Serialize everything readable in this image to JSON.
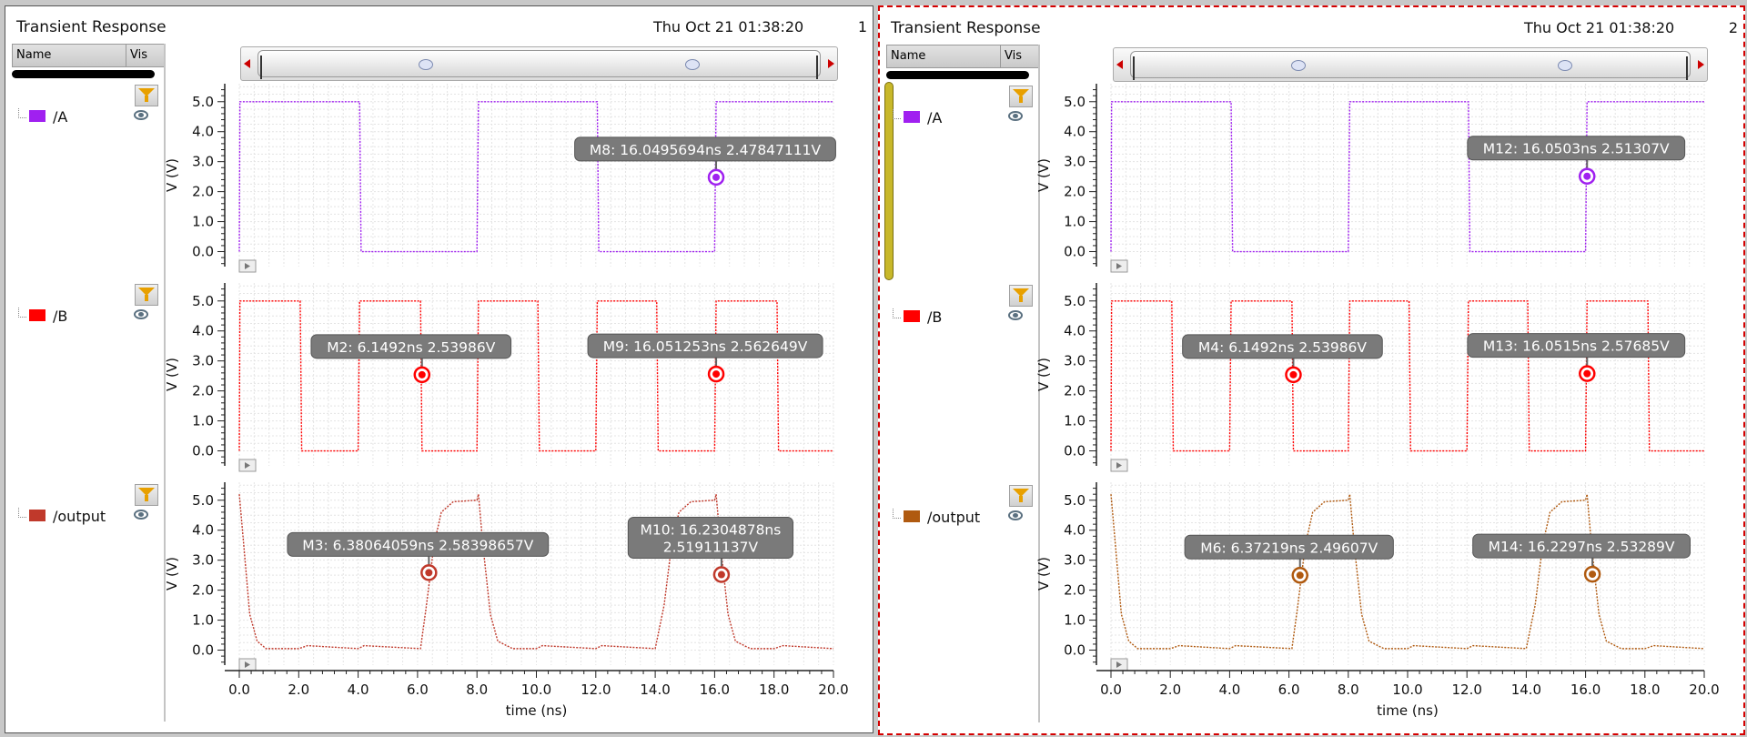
{
  "panels": [
    {
      "title": "Transient Response",
      "date": "Thu Oct 21 01:38:20",
      "number": "1",
      "legend": {
        "name_header": "Name",
        "vis_header": "Vis"
      },
      "signals": [
        {
          "name": "/A",
          "color": "#a020f0"
        },
        {
          "name": "/B",
          "color": "#ff0000"
        },
        {
          "name": "/output",
          "color": "#c0392b"
        }
      ]
    },
    {
      "title": "Transient Response",
      "date": "Thu Oct 21 01:38:20",
      "number": "2",
      "legend": {
        "name_header": "Name",
        "vis_header": "Vis"
      },
      "signals": [
        {
          "name": "/A",
          "color": "#a020f0"
        },
        {
          "name": "/B",
          "color": "#ff0000"
        },
        {
          "name": "/output",
          "color": "#b05a10"
        }
      ]
    }
  ],
  "chart_data": [
    {
      "type": "line",
      "panel": 1,
      "xlabel": "time (ns)",
      "ylabel": "V (V)",
      "xlim": [
        0,
        20
      ],
      "ylim": [
        -0.5,
        5.6
      ],
      "xticks": [
        "0.0",
        "2.0",
        "4.0",
        "6.0",
        "8.0",
        "10.0",
        "12.0",
        "14.0",
        "16.0",
        "18.0",
        "20.0"
      ],
      "yticks": [
        "0.0",
        "1.0",
        "2.0",
        "3.0",
        "4.0",
        "5.0"
      ],
      "grid": true,
      "subplots": [
        {
          "signal": "/A",
          "color": "#a020f0",
          "x": [
            0,
            0.02,
            4.05,
            4.1,
            8.0,
            8.05,
            12.05,
            12.1,
            16.0,
            16.05,
            20
          ],
          "y": [
            0,
            5.0,
            5.0,
            0,
            0,
            5.0,
            5.0,
            0,
            0,
            5.0,
            5.0
          ],
          "markers": [
            {
              "label": "M8: 16.0495694ns 2.47847111V",
              "x": 16.0495694,
              "y": 2.47847111
            }
          ]
        },
        {
          "signal": "/B",
          "color": "#ff0000",
          "x": [
            0,
            0.02,
            2.05,
            2.1,
            4.0,
            4.05,
            6.1,
            6.15,
            8.0,
            8.05,
            10.05,
            10.1,
            12.0,
            12.05,
            14.05,
            14.1,
            16.0,
            16.05,
            18.1,
            18.15,
            20
          ],
          "y": [
            0,
            5.0,
            5.0,
            0,
            0,
            5.0,
            5.0,
            0,
            0,
            5.0,
            5.0,
            0,
            0,
            5.0,
            5.0,
            0,
            0,
            5.0,
            5.0,
            0,
            0
          ],
          "markers": [
            {
              "label": "M2: 6.1492ns 2.53986V",
              "x": 6.1492,
              "y": 2.53986
            },
            {
              "label": "M9: 16.051253ns 2.562649V",
              "x": 16.051253,
              "y": 2.562649
            }
          ]
        },
        {
          "signal": "/output",
          "color": "#c0392b",
          "x": [
            0,
            0.15,
            0.35,
            0.6,
            0.9,
            2.0,
            2.3,
            4.0,
            4.2,
            6.1,
            6.3,
            6.55,
            6.8,
            7.2,
            8.0,
            8.05,
            8.2,
            8.45,
            8.7,
            9.2,
            10.0,
            10.2,
            12.0,
            12.2,
            14.0,
            14.3,
            14.55,
            14.8,
            15.2,
            16.0,
            16.05,
            16.2,
            16.45,
            16.7,
            17.2,
            18.0,
            18.3,
            20
          ],
          "y": [
            5.2,
            3.5,
            1.2,
            0.3,
            0.05,
            0.05,
            0.15,
            0.05,
            0.15,
            0.05,
            1.5,
            3.5,
            4.6,
            4.95,
            5.0,
            5.2,
            3.5,
            1.2,
            0.3,
            0.05,
            0.05,
            0.15,
            0.05,
            0.15,
            0.05,
            1.5,
            3.5,
            4.6,
            4.95,
            5.0,
            5.2,
            3.5,
            1.2,
            0.3,
            0.05,
            0.05,
            0.15,
            0.05
          ],
          "markers": [
            {
              "label": "M3: 6.38064059ns 2.58398657V",
              "x": 6.38064059,
              "y": 2.58398657
            },
            {
              "label": "M10: 16.2304878ns 2.51911137V",
              "x": 16.2304878,
              "y": 2.51911137,
              "label_lines": [
                "M10: 16.2304878ns",
                "2.51911137V"
              ]
            }
          ]
        }
      ]
    },
    {
      "type": "line",
      "panel": 2,
      "xlabel": "time (ns)",
      "ylabel": "V (V)",
      "xlim": [
        0,
        20
      ],
      "ylim": [
        -0.5,
        5.6
      ],
      "xticks": [
        "0.0",
        "2.0",
        "4.0",
        "6.0",
        "8.0",
        "10.0",
        "12.0",
        "14.0",
        "16.0",
        "18.0",
        "20.0"
      ],
      "yticks": [
        "0.0",
        "1.0",
        "2.0",
        "3.0",
        "4.0",
        "5.0"
      ],
      "grid": true,
      "subplots": [
        {
          "signal": "/A",
          "color": "#a020f0",
          "x": [
            0,
            0.02,
            4.05,
            4.1,
            8.0,
            8.05,
            12.05,
            12.1,
            16.0,
            16.05,
            20
          ],
          "y": [
            0,
            5.0,
            5.0,
            0,
            0,
            5.0,
            5.0,
            0,
            0,
            5.0,
            5.0
          ],
          "markers": [
            {
              "label": "M12: 16.0503ns 2.51307V",
              "x": 16.0503,
              "y": 2.51307
            }
          ]
        },
        {
          "signal": "/B",
          "color": "#ff0000",
          "x": [
            0,
            0.02,
            2.05,
            2.1,
            4.0,
            4.05,
            6.1,
            6.15,
            8.0,
            8.05,
            10.05,
            10.1,
            12.0,
            12.05,
            14.05,
            14.1,
            16.0,
            16.05,
            18.1,
            18.15,
            20
          ],
          "y": [
            0,
            5.0,
            5.0,
            0,
            0,
            5.0,
            5.0,
            0,
            0,
            5.0,
            5.0,
            0,
            0,
            5.0,
            5.0,
            0,
            0,
            5.0,
            5.0,
            0,
            0
          ],
          "markers": [
            {
              "label": "M4: 6.1492ns 2.53986V",
              "x": 6.1492,
              "y": 2.53986
            },
            {
              "label": "M13: 16.0515ns 2.57685V",
              "x": 16.0515,
              "y": 2.57685
            }
          ]
        },
        {
          "signal": "/output",
          "color": "#b05a10",
          "x": [
            0,
            0.15,
            0.35,
            0.6,
            0.9,
            2.0,
            2.3,
            4.0,
            4.2,
            6.1,
            6.3,
            6.55,
            6.8,
            7.2,
            8.0,
            8.05,
            8.2,
            8.45,
            8.7,
            9.2,
            10.0,
            10.2,
            12.0,
            12.2,
            14.0,
            14.3,
            14.55,
            14.8,
            15.2,
            16.0,
            16.05,
            16.2,
            16.45,
            16.7,
            17.2,
            18.0,
            18.3,
            20
          ],
          "y": [
            5.2,
            3.5,
            1.2,
            0.3,
            0.05,
            0.05,
            0.15,
            0.05,
            0.15,
            0.05,
            1.5,
            3.5,
            4.6,
            4.95,
            5.0,
            5.2,
            3.5,
            1.2,
            0.3,
            0.05,
            0.05,
            0.15,
            0.05,
            0.15,
            0.05,
            1.5,
            3.5,
            4.6,
            4.95,
            5.0,
            5.2,
            3.5,
            1.2,
            0.3,
            0.05,
            0.05,
            0.15,
            0.05
          ],
          "markers": [
            {
              "label": "M6: 6.37219ns 2.49607V",
              "x": 6.37219,
              "y": 2.49607
            },
            {
              "label": "M14: 16.2297ns 2.53289V",
              "x": 16.2297,
              "y": 2.53289
            }
          ]
        }
      ]
    }
  ]
}
